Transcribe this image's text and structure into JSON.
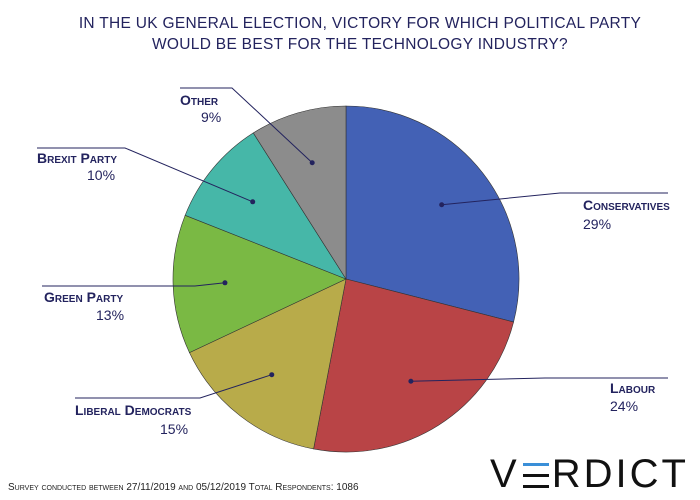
{
  "chart_data": {
    "type": "pie",
    "title_lines": [
      "IN THE UK GENERAL ELECTION, VICTORY FOR WHICH POLITICAL PARTY",
      "WOULD BE BEST FOR THE TECHNOLOGY INDUSTRY?"
    ],
    "categories": [
      "Conservatives",
      "Labour",
      "Liberal Democrats",
      "Green Party",
      "Brexit Party",
      "Other"
    ],
    "values": [
      29,
      24,
      15,
      13,
      10,
      9
    ],
    "labels": [
      "29%",
      "24%",
      "15%",
      "13%",
      "10%",
      "9%"
    ],
    "colors": [
      "#4361b5",
      "#b94446",
      "#b8ab4a",
      "#7ab944",
      "#46b7a8",
      "#8c8c8c"
    ],
    "start": "top",
    "direction": "clockwise"
  },
  "footer": "Survey conducted between 27/11/2019 and 05/12/2019 Total Respondents: 1086",
  "logo": "VERDICT",
  "line_color": "#23235e"
}
